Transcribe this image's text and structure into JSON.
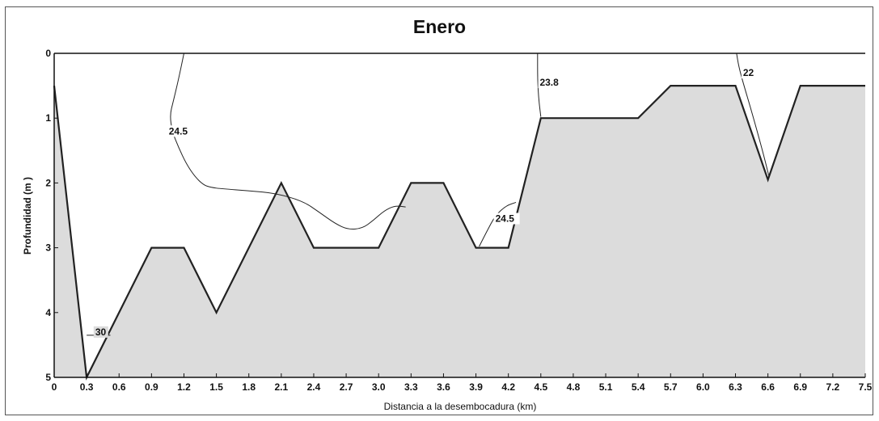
{
  "chart_data": {
    "type": "area",
    "title": "Enero",
    "xlabel": "Distancia a la desembocadura (km)",
    "ylabel": "Profundidad (m )",
    "xlim": [
      0,
      7.5
    ],
    "ylim": [
      0,
      5
    ],
    "y_inverted": true,
    "x_ticks": [
      "0",
      "0.3",
      "0.6",
      "0.9",
      "1.2",
      "1.5",
      "1.8",
      "2.1",
      "2.4",
      "2.7",
      "3.0",
      "3.3",
      "3.6",
      "3.9",
      "4.2",
      "4.5",
      "4.8",
      "5.1",
      "5.4",
      "5.7",
      "6.0",
      "6.3",
      "6.6",
      "6.9",
      "7.2",
      "7.5"
    ],
    "y_ticks": [
      "0",
      "1",
      "2",
      "3",
      "4",
      "5"
    ],
    "fill_color": "#dcdcdc",
    "line_color": "#222222",
    "bottom_profile": {
      "x": [
        0,
        0.3,
        0.9,
        1.2,
        1.5,
        2.1,
        2.4,
        3.0,
        3.3,
        3.6,
        3.9,
        4.2,
        4.5,
        5.4,
        5.7,
        6.3,
        6.6,
        6.9,
        7.5
      ],
      "y": [
        0.5,
        5,
        3,
        3,
        4,
        2,
        3,
        3,
        2,
        2,
        3,
        3,
        1,
        1,
        0.5,
        0.5,
        1.95,
        0.5,
        0.5
      ]
    },
    "isolines": [
      {
        "label": "24.5",
        "label_pos": [
          1.06,
          1.25
        ],
        "x": [
          1.2,
          1.15,
          1.1,
          1.07,
          1.09,
          1.15,
          1.22,
          1.3,
          1.38,
          1.45,
          1.55,
          1.8,
          2.05,
          2.3,
          2.45,
          2.6,
          2.72,
          2.85,
          2.95,
          3.05,
          3.15,
          3.25
        ],
        "y": [
          0,
          0.4,
          0.75,
          0.95,
          1.2,
          1.45,
          1.7,
          1.9,
          2.03,
          2.07,
          2.09,
          2.12,
          2.16,
          2.28,
          2.45,
          2.63,
          2.72,
          2.7,
          2.58,
          2.43,
          2.35,
          2.37
        ]
      },
      {
        "label": "24.5",
        "label_pos": [
          4.08,
          2.6
        ],
        "x": [
          3.93,
          4.0,
          4.08,
          4.18,
          4.27
        ],
        "y": [
          2.98,
          2.75,
          2.5,
          2.35,
          2.3
        ]
      },
      {
        "label": "23.8",
        "label_pos": [
          4.49,
          0.5
        ],
        "x": [
          4.47,
          4.47,
          4.48,
          4.5
        ],
        "y": [
          0,
          0.4,
          0.7,
          0.98
        ]
      },
      {
        "label": "22",
        "label_pos": [
          6.37,
          0.35
        ],
        "x": [
          6.31,
          6.33,
          6.37,
          6.45,
          6.55,
          6.61
        ],
        "y": [
          0,
          0.2,
          0.45,
          0.9,
          1.5,
          1.9
        ]
      },
      {
        "label": "30",
        "label_pos": [
          0.38,
          4.35
        ],
        "x": [
          0.3,
          0.52
        ],
        "y": [
          4.35,
          4.35
        ]
      }
    ]
  }
}
